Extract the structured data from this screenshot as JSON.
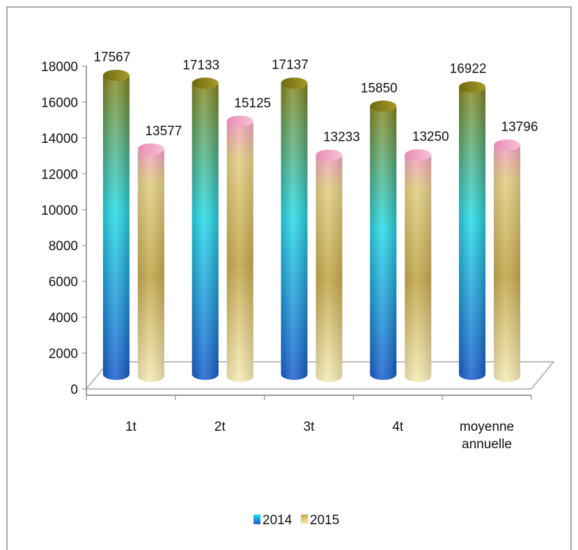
{
  "chart_data": {
    "type": "bar",
    "style": "3d-cylinder",
    "categories": [
      [
        "1t"
      ],
      [
        "2t"
      ],
      [
        "3t"
      ],
      [
        "4t"
      ],
      [
        "moyenne",
        "annuelle"
      ]
    ],
    "series": [
      {
        "name": "2014",
        "values": [
          17567,
          17133,
          17137,
          15850,
          16922
        ],
        "colors": [
          "#1e6fd6",
          "#23d6e6",
          "#8a8a1e"
        ]
      },
      {
        "name": "2015",
        "values": [
          13577,
          15125,
          13233,
          13250,
          13796
        ],
        "colors": [
          "#f3e6a8",
          "#c9b054",
          "#f08fb8"
        ]
      }
    ],
    "y_ticks": [
      "0",
      "2000",
      "4000",
      "6000",
      "8000",
      "10000",
      "12000",
      "14000",
      "16000",
      "18000"
    ],
    "ylim": [
      0,
      18000
    ],
    "legend": "bottom-center",
    "grid": false
  }
}
